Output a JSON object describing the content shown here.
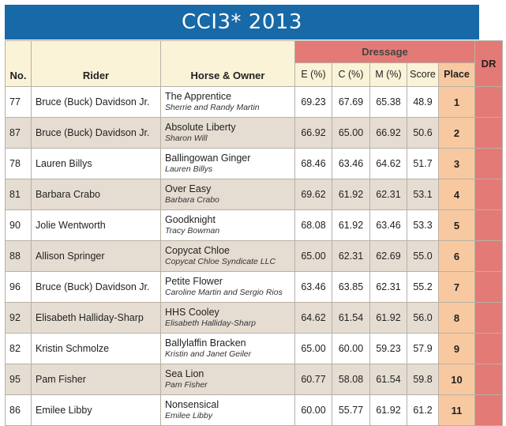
{
  "title": "CCI3* 2013",
  "headers": {
    "no": "No.",
    "rider": "Rider",
    "horse_owner": "Horse & Owner",
    "dressage": "Dressage",
    "e": "E (%)",
    "c": "C (%)",
    "m": "M (%)",
    "score": "Score",
    "place": "Place",
    "dr": "DR"
  },
  "colors": {
    "title_bar": "#1869a8",
    "header_cream": "#fbf3d8",
    "dressage_red": "#e47a76",
    "place_peach": "#f8c9a0",
    "row_alt": "#e6ddd2"
  },
  "rows": [
    {
      "no": "77",
      "rider": "Bruce (Buck) Davidson Jr.",
      "horse": "The Apprentice",
      "owner": "Sherrie and Randy Martin",
      "e": "69.23",
      "c": "67.69",
      "m": "65.38",
      "score": "48.9",
      "place": "1"
    },
    {
      "no": "87",
      "rider": "Bruce (Buck) Davidson Jr.",
      "horse": "Absolute Liberty",
      "owner": "Sharon Will",
      "e": "66.92",
      "c": "65.00",
      "m": "66.92",
      "score": "50.6",
      "place": "2"
    },
    {
      "no": "78",
      "rider": "Lauren Billys",
      "horse": "Ballingowan Ginger",
      "owner": "Lauren Billys",
      "e": "68.46",
      "c": "63.46",
      "m": "64.62",
      "score": "51.7",
      "place": "3"
    },
    {
      "no": "81",
      "rider": "Barbara Crabo",
      "horse": "Over Easy",
      "owner": "Barbara Crabo",
      "e": "69.62",
      "c": "61.92",
      "m": "62.31",
      "score": "53.1",
      "place": "4"
    },
    {
      "no": "90",
      "rider": "Jolie Wentworth",
      "horse": "Goodknight",
      "owner": "Tracy Bowman",
      "e": "68.08",
      "c": "61.92",
      "m": "63.46",
      "score": "53.3",
      "place": "5"
    },
    {
      "no": "88",
      "rider": "Allison Springer",
      "horse": "Copycat Chloe",
      "owner": "Copycat Chloe Syndicate LLC",
      "e": "65.00",
      "c": "62.31",
      "m": "62.69",
      "score": "55.0",
      "place": "6"
    },
    {
      "no": "96",
      "rider": "Bruce (Buck) Davidson Jr.",
      "horse": "Petite Flower",
      "owner": "Caroline Martin and Sergio Rios",
      "e": "63.46",
      "c": "63.85",
      "m": "62.31",
      "score": "55.2",
      "place": "7"
    },
    {
      "no": "92",
      "rider": "Elisabeth Halliday-Sharp",
      "horse": "HHS Cooley",
      "owner": "Elisabeth Halliday-Sharp",
      "e": "64.62",
      "c": "61.54",
      "m": "61.92",
      "score": "56.0",
      "place": "8"
    },
    {
      "no": "82",
      "rider": "Kristin Schmolze",
      "horse": "Ballylaffin Bracken",
      "owner": "Kristin and Janet Geiler",
      "e": "65.00",
      "c": "60.00",
      "m": "59.23",
      "score": "57.9",
      "place": "9"
    },
    {
      "no": "95",
      "rider": "Pam Fisher",
      "horse": "Sea Lion",
      "owner": "Pam Fisher",
      "e": "60.77",
      "c": "58.08",
      "m": "61.54",
      "score": "59.8",
      "place": "10"
    },
    {
      "no": "86",
      "rider": "Emilee Libby",
      "horse": "Nonsensical",
      "owner": "Emilee Libby",
      "e": "60.00",
      "c": "55.77",
      "m": "61.92",
      "score": "61.2",
      "place": "11"
    }
  ]
}
